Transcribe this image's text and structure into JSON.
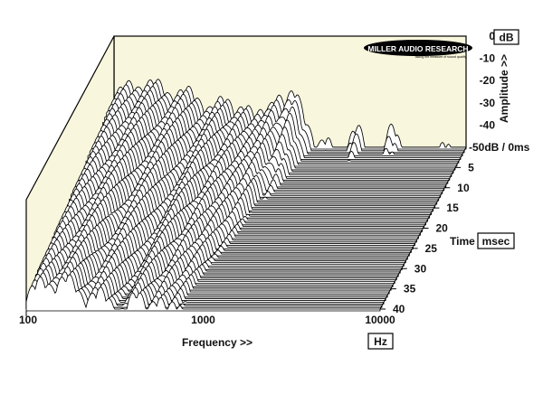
{
  "chart_data": {
    "type": "waterfall",
    "title": "",
    "colors": {
      "background": "#f8f6dc",
      "frame": "#000000",
      "slice_fill": "#ffffff"
    },
    "logo": {
      "name": "MILLER AUDIO RESEARCH",
      "tagline": "taking the measure of sound quality"
    },
    "x": {
      "label": "Frequency >>",
      "unit": "Hz",
      "scale": "log",
      "range": [
        100,
        10000
      ],
      "tick_labels": [
        "100",
        "1000",
        "10000"
      ],
      "tick_values": [
        100,
        1000,
        10000
      ]
    },
    "amplitude": {
      "label": "Amplitude >>",
      "unit": "dB",
      "range": [
        -50,
        0
      ],
      "tick_labels": [
        "0",
        "-10",
        "-20",
        "-30",
        "-40",
        "-50dB / 0ms"
      ],
      "tick_values": [
        0,
        -10,
        -20,
        -30,
        -40,
        -50
      ]
    },
    "time": {
      "label": "Time",
      "unit": "msec",
      "range": [
        0,
        40
      ],
      "tick_labels": [
        "5",
        "10",
        "15",
        "20",
        "25",
        "30",
        "35",
        "40"
      ],
      "tick_values": [
        5,
        10,
        15,
        20,
        25,
        30,
        35,
        40
      ],
      "slice_count": 48
    },
    "resonances": [
      {
        "freq_hz": 120,
        "peak_db": -24,
        "decay_ms": 40
      },
      {
        "freq_hz": 170,
        "peak_db": -22,
        "decay_ms": 40
      },
      {
        "freq_hz": 260,
        "peak_db": -27,
        "decay_ms": 33
      },
      {
        "freq_hz": 420,
        "peak_db": -30,
        "decay_ms": 40
      },
      {
        "freq_hz": 560,
        "peak_db": -33,
        "decay_ms": 40
      },
      {
        "freq_hz": 700,
        "peak_db": -35,
        "decay_ms": 40
      },
      {
        "freq_hz": 850,
        "peak_db": -27,
        "decay_ms": 14
      },
      {
        "freq_hz": 1050,
        "peak_db": -24,
        "decay_ms": 6
      },
      {
        "freq_hz": 1250,
        "peak_db": -43,
        "decay_ms": 4
      },
      {
        "freq_hz": 1600,
        "peak_db": -46,
        "decay_ms": 2
      },
      {
        "freq_hz": 2400,
        "peak_db": -40,
        "decay_ms": 4
      },
      {
        "freq_hz": 3800,
        "peak_db": -40,
        "decay_ms": 3
      },
      {
        "freq_hz": 7600,
        "peak_db": -48,
        "decay_ms": 1
      }
    ]
  }
}
